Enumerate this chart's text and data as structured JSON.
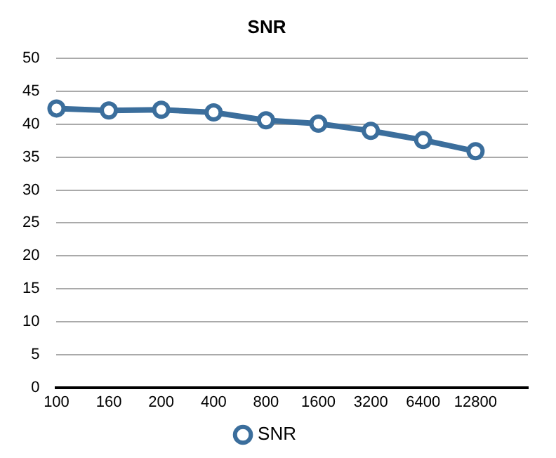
{
  "chart_data": {
    "type": "line",
    "title": "SNR",
    "categories": [
      "100",
      "160",
      "200",
      "400",
      "800",
      "1600",
      "3200",
      "6400",
      "12800",
      null
    ],
    "series": [
      {
        "name": "SNR",
        "color": "#3b6e9c",
        "values": [
          42.4,
          42.1,
          42.2,
          41.8,
          40.6,
          40.1,
          39.0,
          37.6,
          35.9,
          null
        ]
      }
    ],
    "ylim": [
      0,
      50
    ],
    "yticks": [
      0,
      5,
      10,
      15,
      20,
      25,
      30,
      35,
      40,
      45,
      50
    ],
    "grid": "y",
    "legend": "bottom",
    "marker": "circle",
    "line_style": "solid"
  }
}
